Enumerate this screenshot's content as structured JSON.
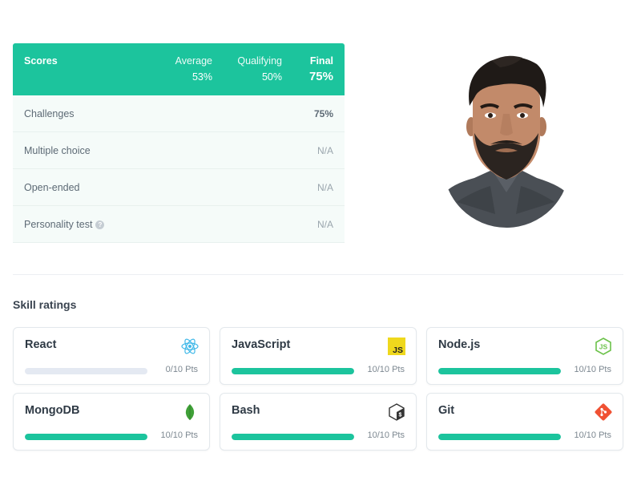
{
  "scores": {
    "title": "Scores",
    "columns": [
      {
        "label": "Average",
        "value": "53%"
      },
      {
        "label": "Qualifying",
        "value": "50%"
      },
      {
        "label": "Final",
        "value": "75%"
      }
    ],
    "rows": [
      {
        "label": "Challenges",
        "value": "75%"
      },
      {
        "label": "Multiple choice",
        "value": "N/A"
      },
      {
        "label": "Open-ended",
        "value": "N/A"
      },
      {
        "label": "Personality test",
        "value": "N/A",
        "help_icon": "question-icon"
      }
    ]
  },
  "skills": {
    "title": "Skill ratings",
    "items": [
      {
        "name": "React",
        "points": "0/10 Pts",
        "progress": 0,
        "icon": "react-icon"
      },
      {
        "name": "JavaScript",
        "points": "10/10 Pts",
        "progress": 1,
        "icon": "javascript-icon"
      },
      {
        "name": "Node.js",
        "points": "10/10 Pts",
        "progress": 1,
        "icon": "nodejs-icon"
      },
      {
        "name": "MongoDB",
        "points": "10/10 Pts",
        "progress": 1,
        "icon": "mongodb-icon"
      },
      {
        "name": "Bash",
        "points": "10/10 Pts",
        "progress": 1,
        "icon": "bash-icon"
      },
      {
        "name": "Git",
        "points": "10/10 Pts",
        "progress": 1,
        "icon": "git-icon"
      }
    ]
  },
  "colors": {
    "accent": "#1cc49d",
    "track": "#e4e9f2"
  }
}
